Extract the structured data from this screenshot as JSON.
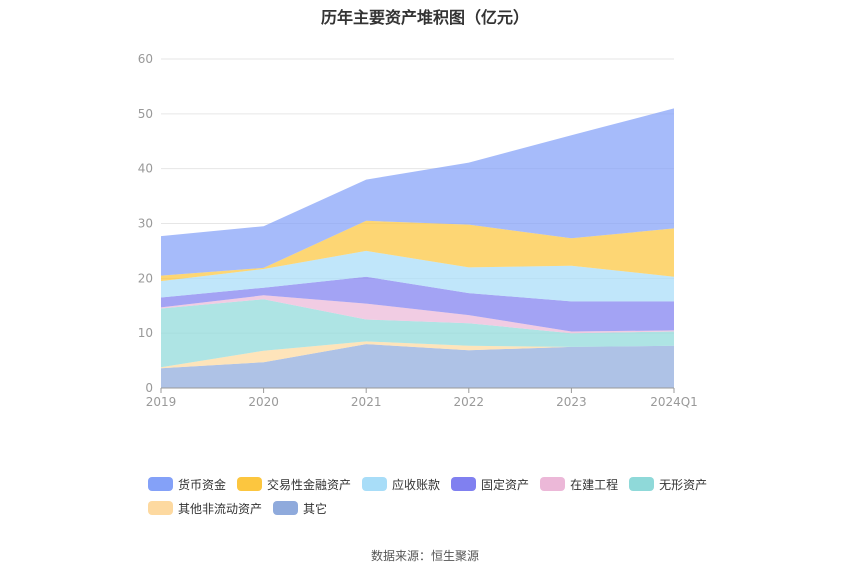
{
  "title": "历年主要资产堆积图（亿元）",
  "source": "数据来源：恒生聚源",
  "chart_data": {
    "type": "area",
    "stacked": true,
    "title": "历年主要资产堆积图（亿元）",
    "xlabel": "",
    "ylabel": "",
    "x": [
      "2019",
      "2020",
      "2021",
      "2022",
      "2023",
      "2024Q1"
    ],
    "ylim": [
      0,
      60
    ],
    "yticks": [
      "0",
      "10",
      "20",
      "30",
      "40",
      "50",
      "60"
    ],
    "grid": true,
    "legend_position": "bottom",
    "series": [
      {
        "name": "其它",
        "color": "#8faadc",
        "values": [
          3.6,
          4.7,
          8.0,
          6.9,
          7.5,
          7.7
        ]
      },
      {
        "name": "其他非流动资产",
        "color": "#fdd9a0",
        "values": [
          0.2,
          2.1,
          0.5,
          0.8,
          0.0,
          0.0
        ]
      },
      {
        "name": "无形资产",
        "color": "#8fd9d9",
        "values": [
          10.7,
          9.4,
          4.0,
          4.1,
          2.5,
          2.6
        ]
      },
      {
        "name": "在建工程",
        "color": "#ecb8d8",
        "values": [
          0.2,
          0.7,
          2.9,
          1.5,
          0.3,
          0.2
        ]
      },
      {
        "name": "固定资产",
        "color": "#8080f0",
        "values": [
          1.8,
          1.4,
          4.9,
          4.0,
          5.5,
          5.3
        ]
      },
      {
        "name": "应收账款",
        "color": "#a8ddf8",
        "values": [
          3.0,
          3.4,
          4.7,
          4.7,
          6.5,
          4.5
        ]
      },
      {
        "name": "交易性金融资产",
        "color": "#fcc63f",
        "values": [
          1.0,
          0.2,
          5.5,
          7.8,
          5.0,
          8.8
        ]
      },
      {
        "name": "货币资金",
        "color": "#84a1f8",
        "values": [
          7.2,
          7.6,
          7.5,
          11.3,
          18.8,
          21.9
        ]
      }
    ]
  },
  "legend": {
    "row1": [
      {
        "label": "货币资金",
        "color": "#84a1f8"
      },
      {
        "label": "交易性金融资产",
        "color": "#fcc63f"
      },
      {
        "label": "应收账款",
        "color": "#a8ddf8"
      },
      {
        "label": "固定资产",
        "color": "#8080f0"
      },
      {
        "label": "在建工程",
        "color": "#ecb8d8"
      },
      {
        "label": "无形资产",
        "color": "#8fd9d9"
      }
    ],
    "row2": [
      {
        "label": "其他非流动资产",
        "color": "#fdd9a0"
      },
      {
        "label": "其它",
        "color": "#8faadc"
      }
    ]
  }
}
